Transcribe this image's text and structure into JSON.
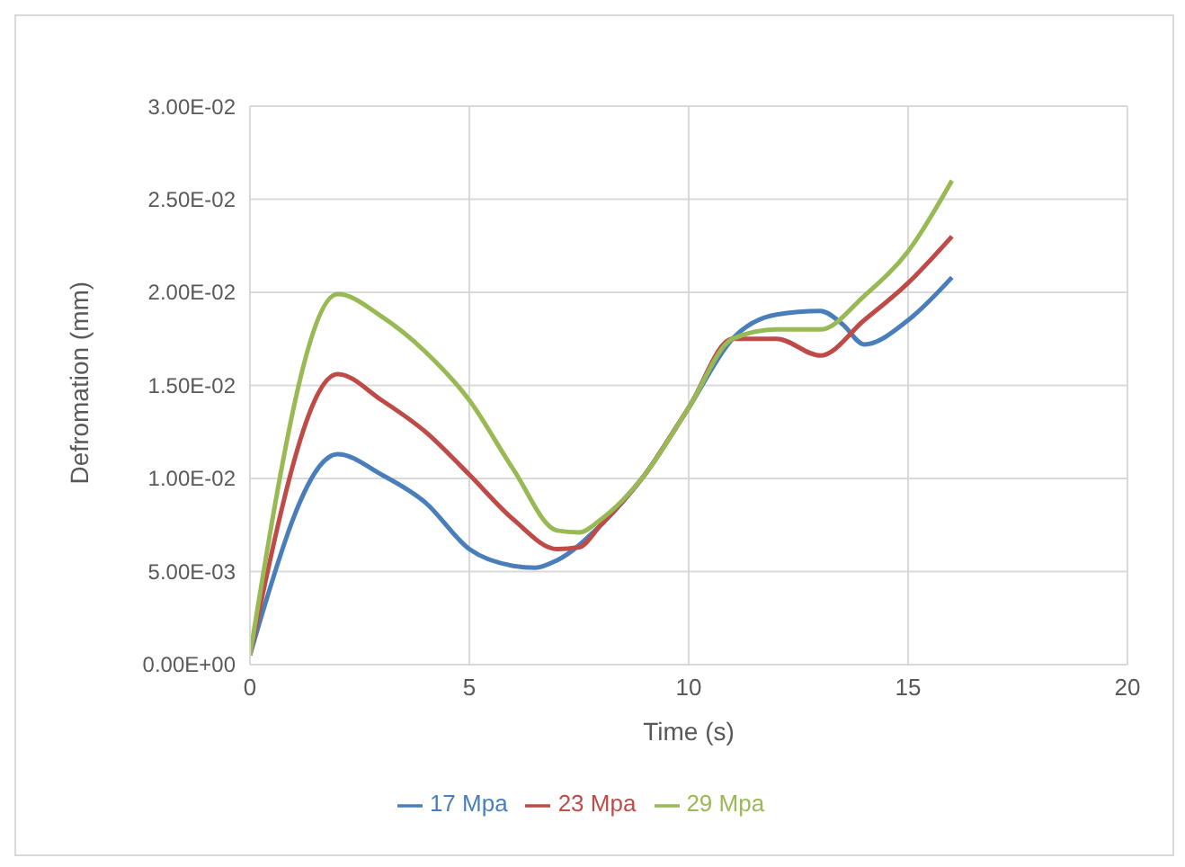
{
  "chart_data": {
    "type": "line",
    "xlabel": "Time (s)",
    "ylabel": "Defromation (mm)",
    "xlim": [
      0,
      20
    ],
    "xticks": [
      0,
      5,
      10,
      15,
      20
    ],
    "ylim": [
      0,
      0.03
    ],
    "yticks": [
      {
        "value": 0,
        "label": "0.00E+00"
      },
      {
        "value": 0.005,
        "label": "5.00E-03"
      },
      {
        "value": 0.01,
        "label": "1.00E-02"
      },
      {
        "value": 0.015,
        "label": "1.50E-02"
      },
      {
        "value": 0.02,
        "label": "2.00E-02"
      },
      {
        "value": 0.025,
        "label": "2.50E-02"
      },
      {
        "value": 0.03,
        "label": "3.00E-02"
      }
    ],
    "grid": true,
    "legend": "bottom",
    "marker": "none",
    "line_style": "solid",
    "series": [
      {
        "name": "17 Mpa",
        "color": "#4a7ebb",
        "x": [
          0,
          2,
          3,
          4,
          5,
          6,
          6.5,
          7,
          8,
          9,
          10,
          11,
          12,
          13,
          13.5,
          14,
          15,
          16
        ],
        "values": [
          0.0005,
          0.0113,
          0.0102,
          0.0087,
          0.0062,
          0.0053,
          0.0052,
          0.0056,
          0.0075,
          0.0102,
          0.0138,
          0.0175,
          0.0188,
          0.019,
          0.0183,
          0.0172,
          0.0185,
          0.0208
        ]
      },
      {
        "name": "23 Mpa",
        "color": "#be4b48",
        "x": [
          0,
          2,
          3,
          4,
          5,
          6,
          7,
          7.5,
          8,
          9,
          10,
          11,
          12,
          13,
          14,
          15,
          16
        ],
        "values": [
          0.0005,
          0.0156,
          0.0142,
          0.0125,
          0.0102,
          0.0078,
          0.0062,
          0.0063,
          0.0075,
          0.0102,
          0.0138,
          0.0175,
          0.0175,
          0.0166,
          0.0185,
          0.0205,
          0.023
        ]
      },
      {
        "name": "29 Mpa",
        "color": "#98b954",
        "x": [
          0,
          2,
          3,
          4,
          5,
          6,
          7,
          7.5,
          8,
          9,
          10,
          11,
          12,
          13,
          14,
          15,
          16
        ],
        "values": [
          0.0005,
          0.0199,
          0.0187,
          0.0168,
          0.0142,
          0.0105,
          0.0072,
          0.0071,
          0.0078,
          0.0102,
          0.0138,
          0.0175,
          0.018,
          0.018,
          0.0198,
          0.0222,
          0.026
        ]
      }
    ]
  }
}
